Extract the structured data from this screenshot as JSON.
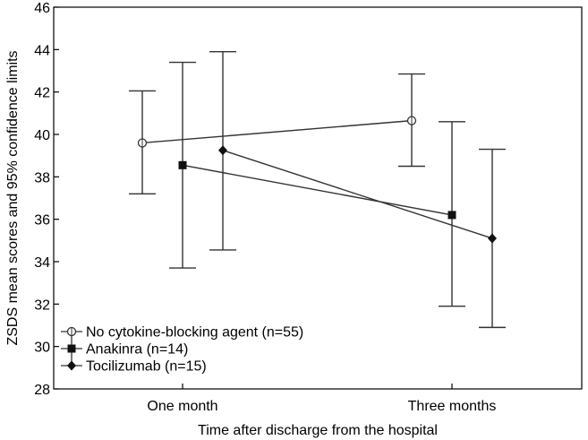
{
  "chart_data": {
    "type": "line",
    "title": "",
    "xlabel": "Time after discharge from the hospital",
    "ylabel": "ZSDS mean scores and 95% confidence limits",
    "categories": [
      "One month",
      "Three months"
    ],
    "ylim": [
      28,
      46
    ],
    "yticks": [
      "28",
      "30",
      "32",
      "34",
      "36",
      "38",
      "40",
      "42",
      "44",
      "46"
    ],
    "grid": false,
    "legend_position": "bottom-left",
    "series": [
      {
        "name": "No cytokine-blocking agent (n=55)",
        "marker": "open-circle",
        "color": "#333333",
        "values": [
          39.6,
          40.65
        ],
        "ci_low": [
          37.2,
          38.5
        ],
        "ci_high": [
          42.05,
          42.85
        ]
      },
      {
        "name": "Anakinra (n=14)",
        "marker": "filled-square",
        "color": "#333333",
        "values": [
          38.55,
          36.2
        ],
        "ci_low": [
          33.7,
          31.9
        ],
        "ci_high": [
          43.4,
          40.6
        ]
      },
      {
        "name": "Tocilizumab (n=15)",
        "marker": "filled-diamond",
        "color": "#333333",
        "values": [
          39.25,
          35.1
        ],
        "ci_low": [
          34.55,
          30.9
        ],
        "ci_high": [
          43.9,
          39.3
        ]
      }
    ]
  }
}
